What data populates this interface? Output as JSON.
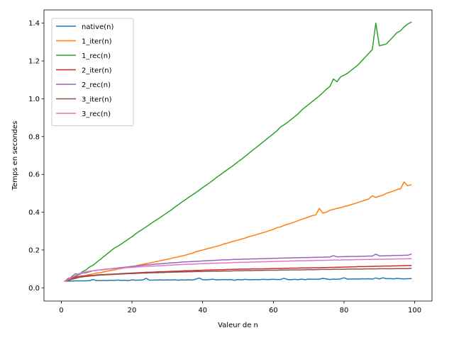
{
  "chart_data": {
    "type": "line",
    "title": "",
    "xlabel": "Valeur de n",
    "ylabel": "Temps en secondes",
    "xlim": [
      -4.9,
      104.9
    ],
    "ylim": [
      -0.07,
      1.47
    ],
    "xticks": [
      0,
      20,
      40,
      60,
      80,
      100
    ],
    "yticks": [
      0.0,
      0.2,
      0.4,
      0.6,
      0.8,
      1.0,
      1.2,
      1.4
    ],
    "ytick_labels": [
      "0.0",
      "0.2",
      "0.4",
      "0.6",
      "0.8",
      "1.0",
      "1.2",
      "1.4"
    ],
    "grid": false,
    "legend_position": "upper left",
    "x": [
      1,
      2,
      3,
      4,
      5,
      6,
      7,
      8,
      9,
      10,
      11,
      12,
      13,
      14,
      15,
      16,
      17,
      18,
      19,
      20,
      21,
      22,
      23,
      24,
      25,
      26,
      27,
      28,
      29,
      30,
      31,
      32,
      33,
      34,
      35,
      36,
      37,
      38,
      39,
      40,
      41,
      42,
      43,
      44,
      45,
      46,
      47,
      48,
      49,
      50,
      51,
      52,
      53,
      54,
      55,
      56,
      57,
      58,
      59,
      60,
      61,
      62,
      63,
      64,
      65,
      66,
      67,
      68,
      69,
      70,
      71,
      72,
      73,
      74,
      75,
      76,
      77,
      78,
      79,
      80,
      81,
      82,
      83,
      84,
      85,
      86,
      87,
      88,
      89,
      90,
      91,
      92,
      93,
      94,
      95,
      96,
      97,
      98,
      99
    ],
    "series": [
      {
        "name": "native(n)",
        "color": "#1f77b4",
        "values": [
          0.035,
          0.036,
          0.036,
          0.037,
          0.037,
          0.037,
          0.037,
          0.038,
          0.044,
          0.038,
          0.038,
          0.039,
          0.038,
          0.04,
          0.039,
          0.041,
          0.039,
          0.04,
          0.038,
          0.042,
          0.04,
          0.041,
          0.041,
          0.05,
          0.04,
          0.041,
          0.041,
          0.042,
          0.041,
          0.042,
          0.041,
          0.043,
          0.04,
          0.042,
          0.041,
          0.043,
          0.041,
          0.045,
          0.052,
          0.043,
          0.042,
          0.044,
          0.045,
          0.042,
          0.043,
          0.044,
          0.043,
          0.044,
          0.04,
          0.044,
          0.042,
          0.045,
          0.043,
          0.043,
          0.044,
          0.043,
          0.045,
          0.044,
          0.044,
          0.045,
          0.044,
          0.044,
          0.05,
          0.044,
          0.043,
          0.045,
          0.043,
          0.046,
          0.043,
          0.046,
          0.045,
          0.045,
          0.046,
          0.05,
          0.047,
          0.044,
          0.046,
          0.045,
          0.047,
          0.053,
          0.046,
          0.046,
          0.047,
          0.046,
          0.048,
          0.047,
          0.048,
          0.046,
          0.052,
          0.047,
          0.053,
          0.048,
          0.049,
          0.047,
          0.05,
          0.048,
          0.047,
          0.048,
          0.049
        ]
      },
      {
        "name": "1_iter(n)",
        "color": "#ff7f0e",
        "values": [
          0.035,
          0.045,
          0.048,
          0.055,
          0.06,
          0.062,
          0.066,
          0.07,
          0.074,
          0.078,
          0.08,
          0.084,
          0.088,
          0.092,
          0.095,
          0.099,
          0.102,
          0.106,
          0.11,
          0.113,
          0.116,
          0.12,
          0.124,
          0.128,
          0.131,
          0.135,
          0.14,
          0.143,
          0.147,
          0.151,
          0.155,
          0.16,
          0.163,
          0.168,
          0.172,
          0.178,
          0.182,
          0.19,
          0.195,
          0.2,
          0.205,
          0.21,
          0.215,
          0.22,
          0.225,
          0.232,
          0.236,
          0.242,
          0.248,
          0.252,
          0.258,
          0.263,
          0.27,
          0.275,
          0.28,
          0.286,
          0.291,
          0.297,
          0.303,
          0.309,
          0.318,
          0.322,
          0.33,
          0.336,
          0.342,
          0.348,
          0.355,
          0.362,
          0.368,
          0.375,
          0.382,
          0.385,
          0.42,
          0.395,
          0.4,
          0.41,
          0.415,
          0.42,
          0.424,
          0.43,
          0.434,
          0.44,
          0.445,
          0.452,
          0.458,
          0.464,
          0.47,
          0.487,
          0.478,
          0.485,
          0.49,
          0.5,
          0.506,
          0.512,
          0.52,
          0.524,
          0.56,
          0.54,
          0.545
        ]
      },
      {
        "name": "1_rec(n)",
        "color": "#2ca02c",
        "values": [
          0.035,
          0.045,
          0.05,
          0.06,
          0.07,
          0.085,
          0.095,
          0.11,
          0.12,
          0.135,
          0.15,
          0.165,
          0.18,
          0.195,
          0.21,
          0.22,
          0.232,
          0.245,
          0.258,
          0.27,
          0.285,
          0.298,
          0.31,
          0.322,
          0.335,
          0.348,
          0.36,
          0.372,
          0.385,
          0.398,
          0.41,
          0.425,
          0.438,
          0.452,
          0.465,
          0.478,
          0.49,
          0.503,
          0.516,
          0.53,
          0.543,
          0.556,
          0.57,
          0.585,
          0.598,
          0.612,
          0.625,
          0.638,
          0.652,
          0.667,
          0.68,
          0.695,
          0.71,
          0.726,
          0.74,
          0.755,
          0.77,
          0.785,
          0.8,
          0.815,
          0.83,
          0.85,
          0.862,
          0.875,
          0.89,
          0.905,
          0.92,
          0.94,
          0.955,
          0.97,
          0.985,
          1.0,
          1.015,
          1.032,
          1.05,
          1.065,
          1.105,
          1.09,
          1.115,
          1.125,
          1.135,
          1.15,
          1.165,
          1.18,
          1.2,
          1.22,
          1.24,
          1.26,
          1.4,
          1.28,
          1.285,
          1.29,
          1.31,
          1.33,
          1.35,
          1.36,
          1.38,
          1.395,
          1.405
        ]
      },
      {
        "name": "2_iter(n)",
        "color": "#d62728",
        "values": [
          0.035,
          0.05,
          0.052,
          0.055,
          0.06,
          0.062,
          0.063,
          0.065,
          0.066,
          0.068,
          0.069,
          0.07,
          0.071,
          0.072,
          0.073,
          0.074,
          0.075,
          0.076,
          0.077,
          0.078,
          0.079,
          0.08,
          0.081,
          0.082,
          0.082,
          0.083,
          0.084,
          0.085,
          0.085,
          0.086,
          0.087,
          0.088,
          0.088,
          0.089,
          0.09,
          0.09,
          0.091,
          0.092,
          0.092,
          0.093,
          0.094,
          0.094,
          0.095,
          0.095,
          0.096,
          0.096,
          0.097,
          0.097,
          0.098,
          0.098,
          0.099,
          0.099,
          0.099,
          0.1,
          0.1,
          0.1,
          0.1,
          0.101,
          0.101,
          0.102,
          0.102,
          0.102,
          0.103,
          0.103,
          0.104,
          0.104,
          0.104,
          0.105,
          0.105,
          0.105,
          0.106,
          0.106,
          0.106,
          0.107,
          0.107,
          0.108,
          0.108,
          0.109,
          0.109,
          0.11,
          0.11,
          0.111,
          0.111,
          0.112,
          0.112,
          0.112,
          0.113,
          0.113,
          0.114,
          0.114,
          0.115,
          0.115,
          0.115,
          0.116,
          0.116,
          0.117,
          0.117,
          0.118,
          0.118
        ]
      },
      {
        "name": "2_rec(n)",
        "color": "#9467bd",
        "values": [
          0.035,
          0.045,
          0.06,
          0.075,
          0.07,
          0.078,
          0.08,
          0.085,
          0.09,
          0.093,
          0.095,
          0.097,
          0.099,
          0.101,
          0.103,
          0.105,
          0.107,
          0.109,
          0.111,
          0.113,
          0.115,
          0.117,
          0.119,
          0.121,
          0.122,
          0.124,
          0.126,
          0.127,
          0.129,
          0.13,
          0.132,
          0.133,
          0.134,
          0.136,
          0.137,
          0.138,
          0.139,
          0.14,
          0.141,
          0.142,
          0.143,
          0.144,
          0.145,
          0.146,
          0.147,
          0.148,
          0.148,
          0.149,
          0.15,
          0.15,
          0.151,
          0.152,
          0.152,
          0.153,
          0.153,
          0.154,
          0.154,
          0.155,
          0.155,
          0.156,
          0.156,
          0.157,
          0.157,
          0.158,
          0.158,
          0.159,
          0.159,
          0.16,
          0.16,
          0.16,
          0.161,
          0.161,
          0.162,
          0.162,
          0.163,
          0.163,
          0.17,
          0.164,
          0.164,
          0.165,
          0.165,
          0.166,
          0.166,
          0.166,
          0.167,
          0.167,
          0.168,
          0.168,
          0.178,
          0.169,
          0.169,
          0.17,
          0.17,
          0.171,
          0.171,
          0.171,
          0.172,
          0.172,
          0.178
        ]
      },
      {
        "name": "3_iter(n)",
        "color": "#8c564b",
        "values": [
          0.035,
          0.04,
          0.045,
          0.05,
          0.055,
          0.058,
          0.06,
          0.062,
          0.064,
          0.066,
          0.067,
          0.068,
          0.069,
          0.07,
          0.071,
          0.072,
          0.073,
          0.074,
          0.075,
          0.075,
          0.076,
          0.077,
          0.078,
          0.078,
          0.079,
          0.08,
          0.08,
          0.081,
          0.081,
          0.082,
          0.082,
          0.083,
          0.083,
          0.084,
          0.084,
          0.085,
          0.085,
          0.086,
          0.086,
          0.086,
          0.087,
          0.087,
          0.088,
          0.088,
          0.088,
          0.089,
          0.089,
          0.089,
          0.09,
          0.09,
          0.09,
          0.091,
          0.091,
          0.091,
          0.092,
          0.092,
          0.092,
          0.093,
          0.093,
          0.093,
          0.093,
          0.094,
          0.094,
          0.094,
          0.095,
          0.095,
          0.095,
          0.095,
          0.096,
          0.096,
          0.096,
          0.096,
          0.097,
          0.097,
          0.097,
          0.097,
          0.098,
          0.098,
          0.098,
          0.098,
          0.099,
          0.099,
          0.099,
          0.099,
          0.099,
          0.1,
          0.1,
          0.1,
          0.1,
          0.101,
          0.101,
          0.101,
          0.101,
          0.101,
          0.102,
          0.102,
          0.102,
          0.102,
          0.103
        ]
      },
      {
        "name": "3_rec(n)",
        "color": "#e377c2",
        "values": [
          0.035,
          0.045,
          0.055,
          0.065,
          0.075,
          0.08,
          0.085,
          0.088,
          0.09,
          0.092,
          0.094,
          0.096,
          0.098,
          0.1,
          0.101,
          0.103,
          0.104,
          0.106,
          0.107,
          0.108,
          0.11,
          0.111,
          0.112,
          0.113,
          0.114,
          0.115,
          0.116,
          0.117,
          0.118,
          0.119,
          0.12,
          0.121,
          0.122,
          0.123,
          0.124,
          0.125,
          0.125,
          0.126,
          0.127,
          0.128,
          0.128,
          0.129,
          0.13,
          0.13,
          0.131,
          0.132,
          0.132,
          0.133,
          0.134,
          0.134,
          0.135,
          0.135,
          0.136,
          0.136,
          0.137,
          0.137,
          0.138,
          0.138,
          0.139,
          0.139,
          0.14,
          0.14,
          0.141,
          0.141,
          0.142,
          0.142,
          0.143,
          0.143,
          0.143,
          0.144,
          0.144,
          0.145,
          0.145,
          0.145,
          0.146,
          0.146,
          0.147,
          0.147,
          0.147,
          0.148,
          0.148,
          0.148,
          0.149,
          0.149,
          0.149,
          0.15,
          0.15,
          0.15,
          0.151,
          0.151,
          0.151,
          0.152,
          0.152,
          0.152,
          0.153,
          0.153,
          0.153,
          0.154,
          0.154
        ]
      }
    ]
  }
}
